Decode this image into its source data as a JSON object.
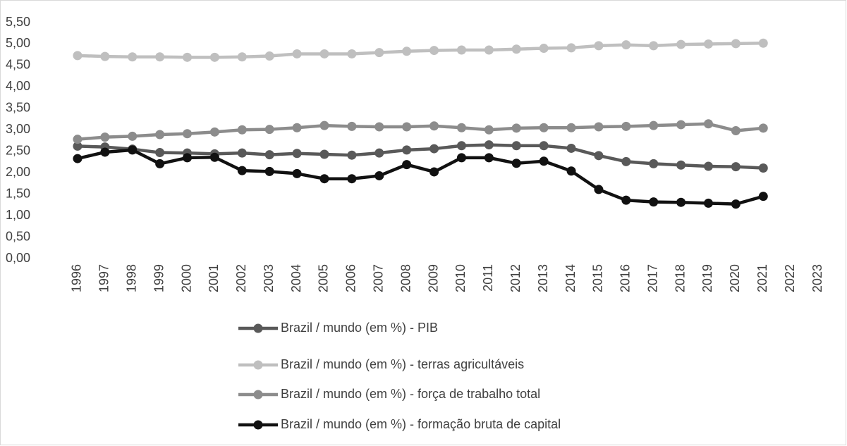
{
  "chart_data": {
    "type": "line",
    "categories": [
      "1996",
      "1997",
      "1998",
      "1999",
      "2000",
      "2001",
      "2002",
      "2003",
      "2004",
      "2005",
      "2006",
      "2007",
      "2008",
      "2009",
      "2010",
      "2011",
      "2012",
      "2013",
      "2014",
      "2015",
      "2016",
      "2017",
      "2018",
      "2019",
      "2020",
      "2021",
      "2022",
      "2023"
    ],
    "series": [
      {
        "name": "Brazil / mundo (em %) - PIB",
        "color": "#595959",
        "values": [
          2.62,
          2.6,
          2.55,
          2.47,
          2.46,
          2.44,
          2.46,
          2.42,
          2.45,
          2.43,
          2.41,
          2.46,
          2.53,
          2.56,
          2.63,
          2.65,
          2.63,
          2.63,
          2.57,
          2.4,
          2.26,
          2.21,
          2.18,
          2.15,
          2.14,
          2.11,
          null,
          null
        ]
      },
      {
        "name": "Brazil / mundo (em %) - terras agricultáveis",
        "color": "#bfbfbf",
        "values": [
          4.73,
          4.71,
          4.7,
          4.7,
          4.69,
          4.69,
          4.7,
          4.72,
          4.77,
          4.77,
          4.77,
          4.8,
          4.83,
          4.85,
          4.86,
          4.86,
          4.88,
          4.9,
          4.91,
          4.96,
          4.98,
          4.96,
          4.99,
          5.0,
          5.01,
          5.02,
          null,
          null
        ]
      },
      {
        "name": "Brazil / mundo (em %) - força de trabalho total",
        "color": "#8c8c8c",
        "values": [
          2.78,
          2.83,
          2.85,
          2.89,
          2.91,
          2.95,
          3.0,
          3.01,
          3.05,
          3.1,
          3.08,
          3.07,
          3.07,
          3.09,
          3.05,
          3.0,
          3.04,
          3.05,
          3.05,
          3.07,
          3.08,
          3.1,
          3.12,
          3.14,
          2.98,
          3.04,
          null,
          null
        ]
      },
      {
        "name": "Brazil / mundo (em %) - formação bruta de capital",
        "color": "#111111",
        "values": [
          2.33,
          2.48,
          2.53,
          2.21,
          2.35,
          2.36,
          2.05,
          2.03,
          1.98,
          1.86,
          1.86,
          1.93,
          2.19,
          2.02,
          2.35,
          2.35,
          2.22,
          2.27,
          2.04,
          1.61,
          1.36,
          1.32,
          1.31,
          1.29,
          1.27,
          1.45,
          null,
          null
        ]
      }
    ],
    "ylim": [
      0,
      5.5
    ],
    "yticks": [
      {
        "value": 0,
        "label": "0,00"
      },
      {
        "value": 0.5,
        "label": "0,50"
      },
      {
        "value": 1,
        "label": "1,00"
      },
      {
        "value": 1.5,
        "label": "1,50"
      },
      {
        "value": 2,
        "label": "2,00"
      },
      {
        "value": 2.5,
        "label": "2,50"
      },
      {
        "value": 3,
        "label": "3,00"
      },
      {
        "value": 3.5,
        "label": "3,50"
      },
      {
        "value": 4,
        "label": "4,00"
      },
      {
        "value": 4.5,
        "label": "4,50"
      },
      {
        "value": 5,
        "label": "5,00"
      },
      {
        "value": 5.5,
        "label": "5,50"
      }
    ],
    "grid": false
  }
}
